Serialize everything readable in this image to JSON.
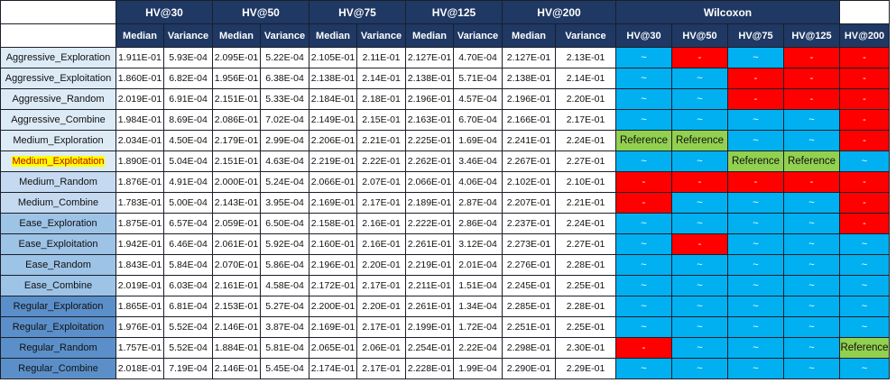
{
  "groups": [
    "HV@30",
    "HV@50",
    "HV@75",
    "HV@125",
    "HV@200"
  ],
  "wilcoxon_title": "Wilcoxon",
  "sub_headers": {
    "median": "Median",
    "variance": "Variance"
  },
  "wilcoxon_cols": [
    "HV@30",
    "HV@50",
    "HV@75",
    "HV@125",
    "HV@200"
  ],
  "rows": [
    {
      "label": "Aggressive_Exploration",
      "group": 1,
      "highlight": false,
      "values": [
        "1.911E-01",
        "5.93E-04",
        "2.095E-01",
        "5.22E-04",
        "2.105E-01",
        "2.11E-01",
        "2.127E-01",
        "4.70E-04",
        "2.127E-01",
        "2.13E-01"
      ],
      "wilcoxon": [
        {
          "t": "tilde",
          "s": "~"
        },
        {
          "t": "red",
          "s": "-"
        },
        {
          "t": "tilde",
          "s": "~"
        },
        {
          "t": "red",
          "s": "-"
        },
        {
          "t": "red",
          "s": "-"
        }
      ]
    },
    {
      "label": "Aggressive_Exploitation",
      "group": 1,
      "highlight": false,
      "values": [
        "1.860E-01",
        "6.82E-04",
        "1.956E-01",
        "6.38E-04",
        "2.138E-01",
        "2.14E-01",
        "2.138E-01",
        "5.71E-04",
        "2.138E-01",
        "2.14E-01"
      ],
      "wilcoxon": [
        {
          "t": "tilde",
          "s": "~"
        },
        {
          "t": "tilde",
          "s": "~"
        },
        {
          "t": "red",
          "s": "-"
        },
        {
          "t": "red",
          "s": "-"
        },
        {
          "t": "red",
          "s": "-"
        }
      ]
    },
    {
      "label": "Aggressive_Random",
      "group": 1,
      "highlight": false,
      "values": [
        "2.019E-01",
        "6.91E-04",
        "2.151E-01",
        "5.33E-04",
        "2.184E-01",
        "2.18E-01",
        "2.196E-01",
        "4.57E-04",
        "2.196E-01",
        "2.20E-01"
      ],
      "wilcoxon": [
        {
          "t": "tilde",
          "s": "~"
        },
        {
          "t": "tilde",
          "s": "~"
        },
        {
          "t": "red",
          "s": "-"
        },
        {
          "t": "red",
          "s": "-"
        },
        {
          "t": "red",
          "s": "-"
        }
      ]
    },
    {
      "label": "Aggressive_Combine",
      "group": 1,
      "highlight": false,
      "values": [
        "1.984E-01",
        "8.69E-04",
        "2.086E-01",
        "7.02E-04",
        "2.149E-01",
        "2.15E-01",
        "2.163E-01",
        "6.70E-04",
        "2.166E-01",
        "2.17E-01"
      ],
      "wilcoxon": [
        {
          "t": "tilde",
          "s": "~"
        },
        {
          "t": "tilde",
          "s": "~"
        },
        {
          "t": "tilde",
          "s": "~"
        },
        {
          "t": "tilde",
          "s": "~"
        },
        {
          "t": "red",
          "s": "-"
        }
      ]
    },
    {
      "label": "Medium_Exploration",
      "group": 1,
      "highlight": false,
      "values": [
        "2.034E-01",
        "4.50E-04",
        "2.179E-01",
        "2.99E-04",
        "2.206E-01",
        "2.21E-01",
        "2.225E-01",
        "1.69E-04",
        "2.241E-01",
        "2.24E-01"
      ],
      "wilcoxon": [
        {
          "t": "ref",
          "s": "Reference"
        },
        {
          "t": "ref",
          "s": "Reference"
        },
        {
          "t": "tilde",
          "s": "~"
        },
        {
          "t": "tilde",
          "s": "~"
        },
        {
          "t": "red",
          "s": "-"
        }
      ]
    },
    {
      "label": "Medium_Exploitation",
      "group": 1,
      "highlight": true,
      "values": [
        "1.890E-01",
        "5.04E-04",
        "2.151E-01",
        "4.63E-04",
        "2.219E-01",
        "2.22E-01",
        "2.262E-01",
        "3.46E-04",
        "2.267E-01",
        "2.27E-01"
      ],
      "wilcoxon": [
        {
          "t": "tilde",
          "s": "~"
        },
        {
          "t": "tilde",
          "s": "~"
        },
        {
          "t": "ref",
          "s": "Reference"
        },
        {
          "t": "ref",
          "s": "Reference"
        },
        {
          "t": "tilde",
          "s": "~"
        }
      ]
    },
    {
      "label": "Medium_Random",
      "group": 2,
      "highlight": false,
      "values": [
        "1.876E-01",
        "4.91E-04",
        "2.000E-01",
        "5.24E-04",
        "2.066E-01",
        "2.07E-01",
        "2.066E-01",
        "4.06E-04",
        "2.102E-01",
        "2.10E-01"
      ],
      "wilcoxon": [
        {
          "t": "red",
          "s": "-"
        },
        {
          "t": "red",
          "s": "-"
        },
        {
          "t": "red",
          "s": "-"
        },
        {
          "t": "red",
          "s": "-"
        },
        {
          "t": "red",
          "s": "-"
        }
      ]
    },
    {
      "label": "Medium_Combine",
      "group": 2,
      "highlight": false,
      "values": [
        "1.783E-01",
        "5.00E-04",
        "2.143E-01",
        "3.95E-04",
        "2.169E-01",
        "2.17E-01",
        "2.189E-01",
        "2.87E-04",
        "2.207E-01",
        "2.21E-01"
      ],
      "wilcoxon": [
        {
          "t": "red",
          "s": "-"
        },
        {
          "t": "tilde",
          "s": "~"
        },
        {
          "t": "tilde",
          "s": "~"
        },
        {
          "t": "tilde",
          "s": "~"
        },
        {
          "t": "red",
          "s": "-"
        }
      ]
    },
    {
      "label": "Ease_Exploration",
      "group": 3,
      "highlight": false,
      "values": [
        "1.875E-01",
        "6.57E-04",
        "2.059E-01",
        "6.50E-04",
        "2.158E-01",
        "2.16E-01",
        "2.222E-01",
        "2.86E-04",
        "2.237E-01",
        "2.24E-01"
      ],
      "wilcoxon": [
        {
          "t": "tilde",
          "s": "~"
        },
        {
          "t": "tilde",
          "s": "~"
        },
        {
          "t": "tilde",
          "s": "~"
        },
        {
          "t": "tilde",
          "s": "~"
        },
        {
          "t": "red",
          "s": "-"
        }
      ]
    },
    {
      "label": "Ease_Exploitation",
      "group": 3,
      "highlight": false,
      "values": [
        "1.942E-01",
        "6.46E-04",
        "2.061E-01",
        "5.92E-04",
        "2.160E-01",
        "2.16E-01",
        "2.261E-01",
        "3.12E-04",
        "2.273E-01",
        "2.27E-01"
      ],
      "wilcoxon": [
        {
          "t": "tilde",
          "s": "~"
        },
        {
          "t": "red",
          "s": "-"
        },
        {
          "t": "tilde",
          "s": "~"
        },
        {
          "t": "tilde",
          "s": "~"
        },
        {
          "t": "tilde",
          "s": "~"
        }
      ]
    },
    {
      "label": "Ease_Random",
      "group": 3,
      "highlight": false,
      "values": [
        "1.843E-01",
        "5.84E-04",
        "2.070E-01",
        "5.86E-04",
        "2.196E-01",
        "2.20E-01",
        "2.219E-01",
        "2.01E-04",
        "2.276E-01",
        "2.28E-01"
      ],
      "wilcoxon": [
        {
          "t": "tilde",
          "s": "~"
        },
        {
          "t": "tilde",
          "s": "~"
        },
        {
          "t": "tilde",
          "s": "~"
        },
        {
          "t": "tilde",
          "s": "~"
        },
        {
          "t": "tilde",
          "s": "~"
        }
      ]
    },
    {
      "label": "Ease_Combine",
      "group": 3,
      "highlight": false,
      "values": [
        "2.019E-01",
        "6.03E-04",
        "2.161E-01",
        "4.58E-04",
        "2.172E-01",
        "2.17E-01",
        "2.211E-01",
        "1.51E-04",
        "2.245E-01",
        "2.25E-01"
      ],
      "wilcoxon": [
        {
          "t": "tilde",
          "s": "~"
        },
        {
          "t": "tilde",
          "s": "~"
        },
        {
          "t": "tilde",
          "s": "~"
        },
        {
          "t": "tilde",
          "s": "~"
        },
        {
          "t": "tilde",
          "s": "~"
        }
      ]
    },
    {
      "label": "Regular_Exploration",
      "group": 4,
      "highlight": false,
      "values": [
        "1.865E-01",
        "6.81E-04",
        "2.153E-01",
        "5.27E-04",
        "2.200E-01",
        "2.20E-01",
        "2.261E-01",
        "1.34E-04",
        "2.285E-01",
        "2.28E-01"
      ],
      "wilcoxon": [
        {
          "t": "tilde",
          "s": "~"
        },
        {
          "t": "tilde",
          "s": "~"
        },
        {
          "t": "tilde",
          "s": "~"
        },
        {
          "t": "tilde",
          "s": "~"
        },
        {
          "t": "tilde",
          "s": "~"
        }
      ]
    },
    {
      "label": "Regular_Exploitation",
      "group": 4,
      "highlight": false,
      "values": [
        "1.976E-01",
        "5.52E-04",
        "2.146E-01",
        "3.87E-04",
        "2.169E-01",
        "2.17E-01",
        "2.199E-01",
        "1.72E-04",
        "2.251E-01",
        "2.25E-01"
      ],
      "wilcoxon": [
        {
          "t": "tilde",
          "s": "~"
        },
        {
          "t": "tilde",
          "s": "~"
        },
        {
          "t": "tilde",
          "s": "~"
        },
        {
          "t": "tilde",
          "s": "~"
        },
        {
          "t": "tilde",
          "s": "~"
        }
      ]
    },
    {
      "label": "Regular_Random",
      "group": 4,
      "highlight": false,
      "values": [
        "1.757E-01",
        "5.52E-04",
        "1.884E-01",
        "5.81E-04",
        "2.065E-01",
        "2.06E-01",
        "2.254E-01",
        "2.22E-04",
        "2.298E-01",
        "2.30E-01"
      ],
      "wilcoxon": [
        {
          "t": "red",
          "s": "-"
        },
        {
          "t": "tilde",
          "s": "~"
        },
        {
          "t": "tilde",
          "s": "~"
        },
        {
          "t": "tilde",
          "s": "~"
        },
        {
          "t": "ref",
          "s": "Reference"
        }
      ]
    },
    {
      "label": "Regular_Combine",
      "group": 4,
      "highlight": false,
      "values": [
        "2.018E-01",
        "7.19E-04",
        "2.146E-01",
        "5.45E-04",
        "2.174E-01",
        "2.17E-01",
        "2.228E-01",
        "1.99E-04",
        "2.290E-01",
        "2.29E-01"
      ],
      "wilcoxon": [
        {
          "t": "tilde",
          "s": "~"
        },
        {
          "t": "tilde",
          "s": "~"
        },
        {
          "t": "tilde",
          "s": "~"
        },
        {
          "t": "tilde",
          "s": "~"
        },
        {
          "t": "tilde",
          "s": "~"
        }
      ]
    }
  ]
}
